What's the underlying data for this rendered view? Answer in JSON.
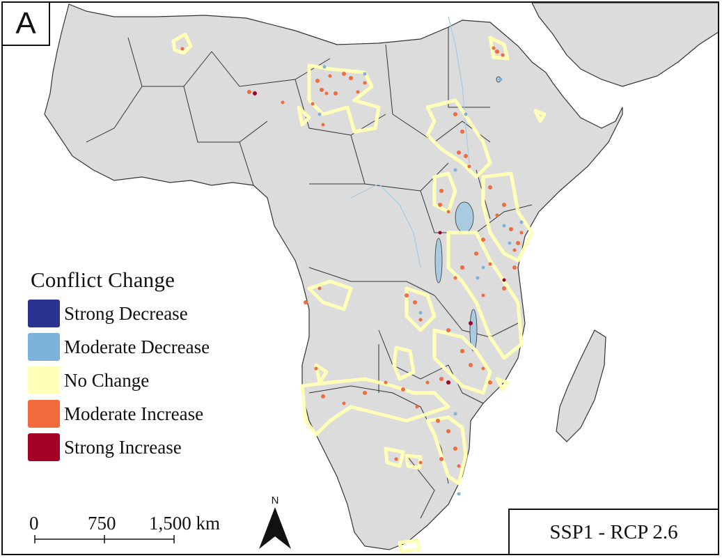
{
  "panel_letter": "A",
  "legend": {
    "title": "Conflict Change",
    "items": [
      {
        "label": "Strong Decrease",
        "color": "#2b3391"
      },
      {
        "label": "Moderate Decrease",
        "color": "#7eb3d9"
      },
      {
        "label": "No Change",
        "color": "#ffffb8"
      },
      {
        "label": "Moderate Increase",
        "color": "#f26b3f"
      },
      {
        "label": "Strong Increase",
        "color": "#a50026"
      }
    ]
  },
  "scale_bar": {
    "labels": [
      "0",
      "750",
      "1,500 km"
    ]
  },
  "north_arrow": {
    "letter": "N"
  },
  "scenario": "SSP1 - RCP 2.6",
  "colors": {
    "land": "#dcdcdc",
    "border": "#333333",
    "water": "#a8cbe0",
    "sea": "#ffffff"
  }
}
